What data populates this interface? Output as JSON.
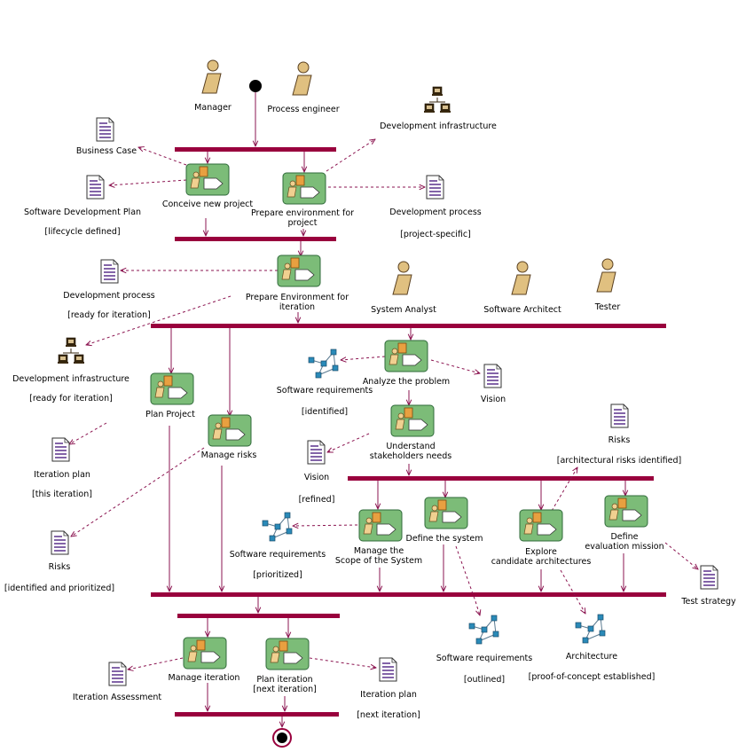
{
  "diagram": {
    "colors": {
      "bar": "#99003d",
      "flow": "#8b1450",
      "activity_fill": "#7cbc78",
      "activity_stroke": "#2f6a3a",
      "actor_fill": "#e0c080",
      "doc_ink": "#40107a",
      "model_node": "#2a8ab8"
    },
    "actors": [
      {
        "id": "manager",
        "label": "Manager"
      },
      {
        "id": "process_engineer",
        "label": "Process engineer"
      },
      {
        "id": "system_analyst",
        "label": "System Analyst"
      },
      {
        "id": "software_architect",
        "label": "Software Architect"
      },
      {
        "id": "tester",
        "label": "Tester"
      }
    ],
    "activities": [
      {
        "id": "conceive",
        "lines": [
          "Conceive new project"
        ]
      },
      {
        "id": "prepare_env_project",
        "lines": [
          "Prepare environment for",
          "project"
        ]
      },
      {
        "id": "prepare_env_iter",
        "lines": [
          "Prepare Environment for",
          "iteration"
        ]
      },
      {
        "id": "analyze",
        "lines": [
          "Analyze the problem"
        ]
      },
      {
        "id": "plan_project",
        "lines": [
          "Plan Project"
        ]
      },
      {
        "id": "manage_risks",
        "lines": [
          "Manage risks"
        ]
      },
      {
        "id": "understand",
        "lines": [
          "Understand",
          "stakeholders needs"
        ]
      },
      {
        "id": "manage_scope",
        "lines": [
          "Manage the",
          "Scope of the System"
        ]
      },
      {
        "id": "define_system",
        "lines": [
          "Define the system"
        ]
      },
      {
        "id": "explore",
        "lines": [
          "Explore",
          "candidate architectures"
        ]
      },
      {
        "id": "define_eval",
        "lines": [
          "Define",
          "evaluation mission"
        ]
      },
      {
        "id": "manage_iter",
        "lines": [
          "Manage iteration"
        ]
      },
      {
        "id": "plan_iter",
        "lines": [
          "Plan iteration",
          "[next iteration]"
        ]
      }
    ],
    "artifacts": [
      {
        "id": "business_case",
        "kind": "doc",
        "lines": [
          "Business Case"
        ]
      },
      {
        "id": "sdp",
        "kind": "doc",
        "lines": [
          "Software Development Plan",
          "[lifecycle defined]"
        ]
      },
      {
        "id": "dev_infra_1",
        "kind": "infra",
        "lines": [
          "Development infrastructure"
        ]
      },
      {
        "id": "dev_proc_1",
        "kind": "doc",
        "lines": [
          "Development process",
          "[project-specific]"
        ]
      },
      {
        "id": "dev_proc_2",
        "kind": "doc",
        "lines": [
          "Development process",
          "[ready for iteration]"
        ]
      },
      {
        "id": "dev_infra_2",
        "kind": "infra",
        "lines": [
          "Development infrastructure",
          "[ready for iteration]"
        ]
      },
      {
        "id": "sw_req_1",
        "kind": "model",
        "lines": [
          "Software requirements",
          "[identified]"
        ]
      },
      {
        "id": "vision_1",
        "kind": "doc",
        "lines": [
          "Vision"
        ]
      },
      {
        "id": "iter_plan_1",
        "kind": "doc",
        "lines": [
          "Iteration plan",
          "[this iteration]"
        ]
      },
      {
        "id": "vision_2",
        "kind": "doc",
        "lines": [
          "Vision",
          "[refined]"
        ]
      },
      {
        "id": "risks_1",
        "kind": "doc",
        "lines": [
          "Risks",
          "[architectural risks identified]"
        ]
      },
      {
        "id": "risks_2",
        "kind": "doc",
        "lines": [
          "Risks",
          "[identified and prioritized]"
        ]
      },
      {
        "id": "sw_req_2",
        "kind": "model",
        "lines": [
          "Software requirements",
          "[prioritized]"
        ]
      },
      {
        "id": "test_strategy",
        "kind": "doc",
        "lines": [
          "Test strategy"
        ]
      },
      {
        "id": "sw_req_3",
        "kind": "model",
        "lines": [
          "Software requirements",
          "[outlined]"
        ]
      },
      {
        "id": "architecture",
        "kind": "model",
        "lines": [
          "Architecture",
          "[proof-of-concept established]"
        ]
      },
      {
        "id": "iter_assess",
        "kind": "doc",
        "lines": [
          "Iteration Assessment"
        ]
      },
      {
        "id": "iter_plan_2",
        "kind": "doc",
        "lines": [
          "Iteration plan",
          "[next iteration]"
        ]
      }
    ]
  }
}
